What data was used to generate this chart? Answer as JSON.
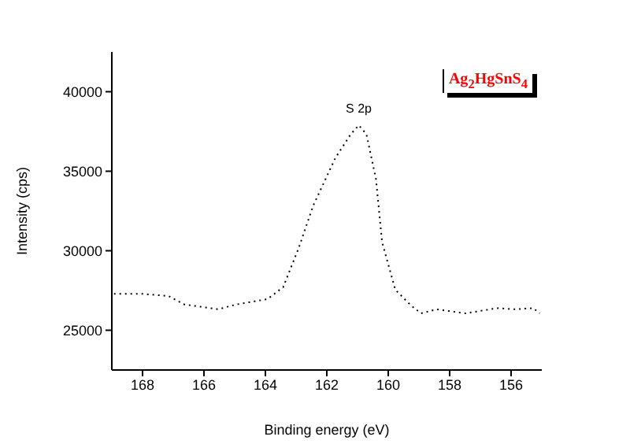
{
  "chart_data": {
    "type": "line",
    "xlabel": "Binding energy (eV)",
    "ylabel": "Intensity (cps)",
    "x": [
      168.93,
      168,
      167.15,
      166.64,
      165.54,
      164.95,
      163.93,
      163.42,
      162.91,
      162.44,
      161.72,
      161.22,
      160.96,
      160.71,
      160.4,
      160.2,
      159.77,
      159.26,
      158.93,
      158.42,
      157.48,
      156.46,
      155.87,
      155.28,
      155.07
    ],
    "series": [
      {
        "color": "#000000",
        "values": [
          27290,
          27290,
          27150,
          26620,
          26320,
          26620,
          26960,
          27710,
          30200,
          32850,
          35840,
          37330,
          37890,
          37330,
          34510,
          30540,
          27550,
          26560,
          26060,
          26320,
          26060,
          26390,
          26320,
          26390,
          26060
        ]
      }
    ],
    "xlim": [
      169,
      155
    ],
    "xticks": [
      168,
      166,
      164,
      162,
      160,
      158,
      156
    ],
    "ylim": [
      22500,
      42500
    ],
    "yticks": [
      25000,
      30000,
      35000,
      40000
    ],
    "line_style": "dotted",
    "marker": "none",
    "grid": false,
    "legend": false,
    "annotations": [
      {
        "text": "S 2p",
        "x": 160.96,
        "y": 37890
      },
      "Ag$_{2}$HgSnS$_{4}$"
    ]
  }
}
